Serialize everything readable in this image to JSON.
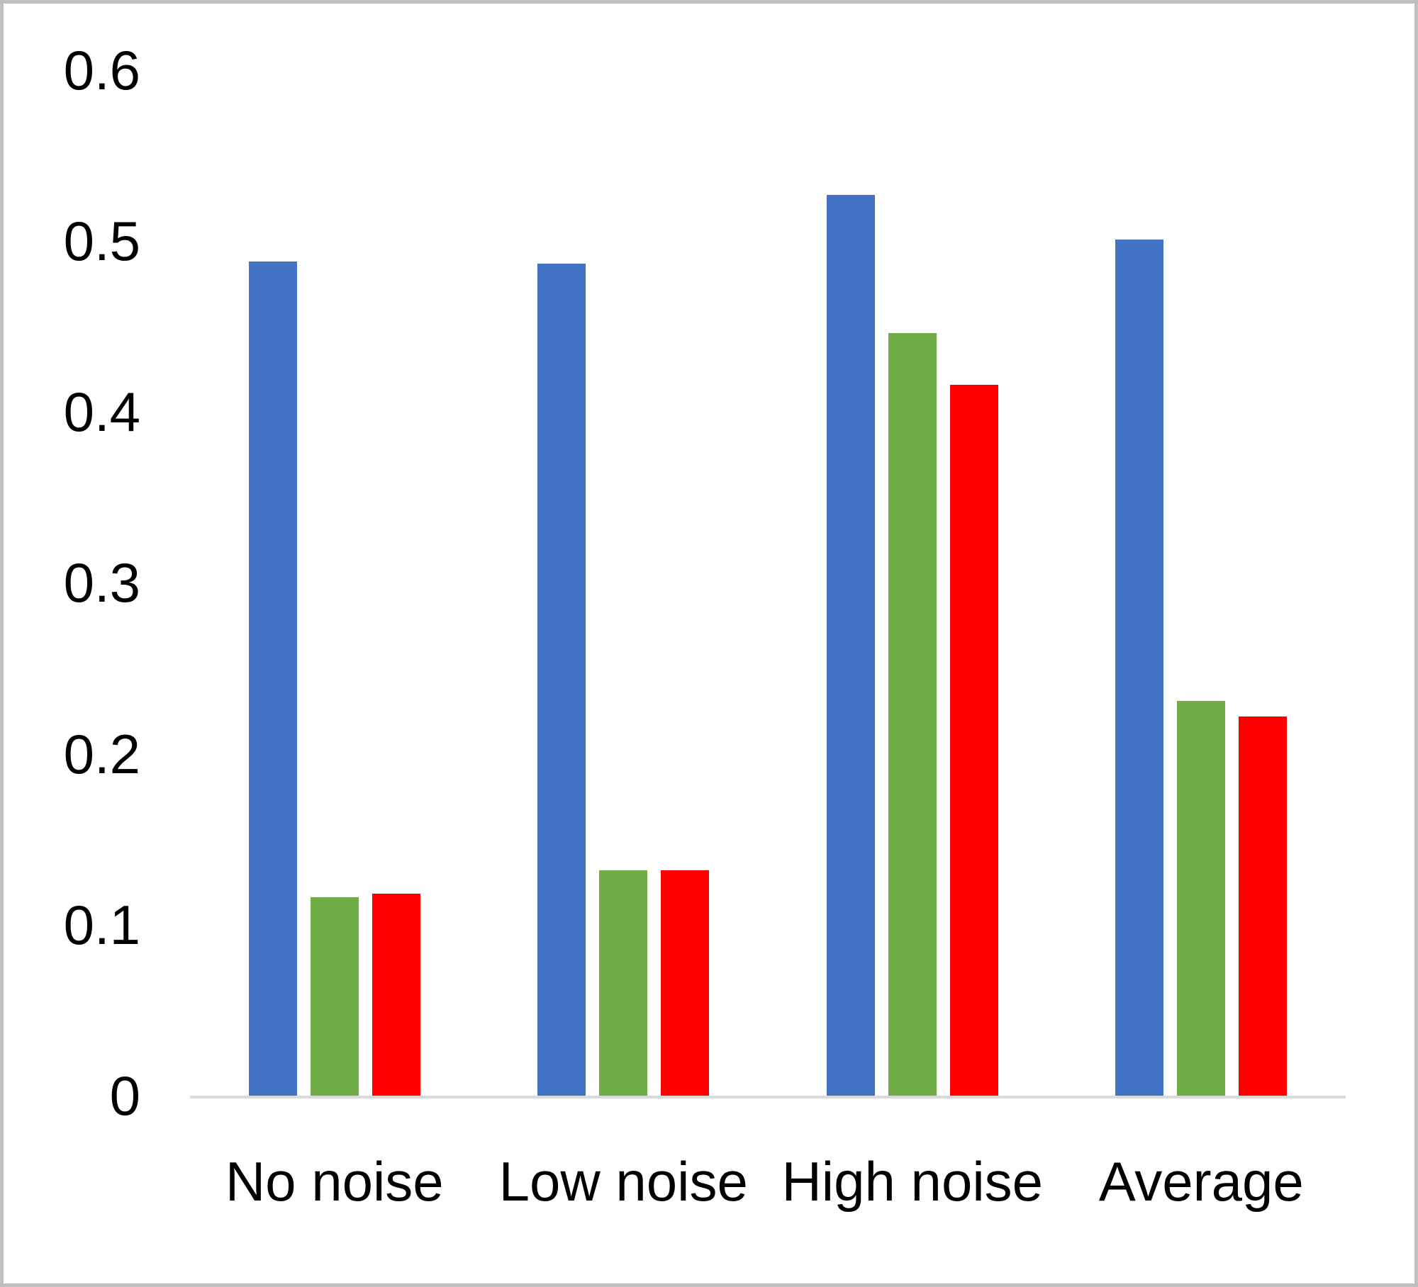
{
  "chart_data": {
    "type": "bar",
    "title": "",
    "xlabel": "",
    "ylabel": "",
    "categories": [
      "No noise",
      "Low noise",
      "High noise",
      "Average"
    ],
    "series": [
      {
        "name": "blue",
        "color": "#4472C4",
        "values": [
          0.488,
          0.487,
          0.527,
          0.501
        ]
      },
      {
        "name": "green",
        "color": "#70AD47",
        "values": [
          0.116,
          0.132,
          0.446,
          0.231
        ]
      },
      {
        "name": "red",
        "color": "#FF0000",
        "values": [
          0.118,
          0.132,
          0.416,
          0.222
        ]
      }
    ],
    "ylim": [
      0,
      0.6
    ],
    "yticks": [
      0,
      0.1,
      0.2,
      0.3,
      0.4,
      0.5,
      0.6
    ],
    "ytick_labels": [
      "0",
      "0.1",
      "0.2",
      "0.3",
      "0.4",
      "0.5",
      "0.6"
    ],
    "grid": false,
    "legend_position": "none"
  },
  "style": {
    "background": "#FFFFFF",
    "border_color": "#BFBFBF",
    "axis_line_color": "#D9D9D9",
    "text_color": "#000000"
  }
}
